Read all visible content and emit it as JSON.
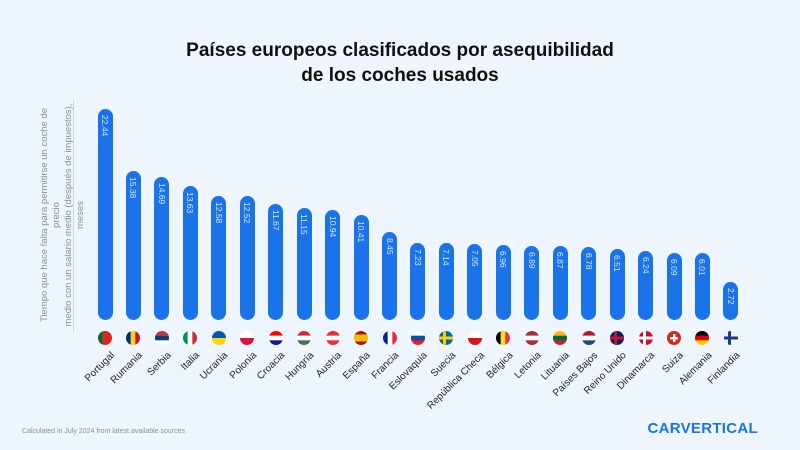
{
  "chart_data": {
    "type": "bar",
    "title_line1": "Países europeos clasificados por asequibilidad",
    "title_line2": "de los coches usados",
    "ylabel_line1": "Tiempo que hace falta para permitirse un coche de precio",
    "ylabel_line2": "medio con un salario medio (después de impuestos), meses",
    "xlabel": "",
    "categories": [
      "Portugal",
      "Rumania",
      "Serbia",
      "Italia",
      "Ucrania",
      "Polonia",
      "Croacia",
      "Hungría",
      "Austria",
      "España",
      "Francia",
      "Eslovaquia",
      "Suecia",
      "República Checa",
      "Bélgica",
      "Letonia",
      "Lituania",
      "Países Bajos",
      "Reino Unido",
      "Dinamarca",
      "Suiza",
      "Alemania",
      "Finlandia"
    ],
    "values": [
      22.44,
      15.38,
      14.69,
      13.63,
      12.58,
      12.52,
      11.67,
      11.15,
      10.94,
      10.41,
      8.45,
      7.23,
      7.14,
      7.05,
      6.96,
      6.89,
      6.87,
      6.78,
      6.51,
      6.24,
      6.09,
      6.01,
      2.72
    ],
    "value_labels": [
      "22.44",
      "15.38",
      "14.69",
      "13.63",
      "12.58",
      "12.52",
      "11.67",
      "11.15",
      "10.94",
      "10.41",
      "8.45",
      "7.23",
      "7.14",
      "7.05",
      "6.96",
      "6.89",
      "6.87",
      "6.78",
      "6.51",
      "6.24",
      "6.09",
      "6.01",
      "2.72"
    ],
    "ylim": [
      0,
      24
    ],
    "grid": false,
    "bar_color": "#1a73e8",
    "flags": [
      {
        "icon": "portugal-flag-icon",
        "dir": "v",
        "colors": [
          "#046a38",
          "#da291c",
          "#da291c"
        ]
      },
      {
        "icon": "romania-flag-icon",
        "dir": "v",
        "colors": [
          "#002b7f",
          "#fcd116",
          "#ce1126"
        ]
      },
      {
        "icon": "serbia-flag-icon",
        "dir": "h",
        "colors": [
          "#c6363c",
          "#0c4076",
          "#ffffff"
        ]
      },
      {
        "icon": "italy-flag-icon",
        "dir": "v",
        "colors": [
          "#009246",
          "#ffffff",
          "#ce2b37"
        ]
      },
      {
        "icon": "ukraine-flag-icon",
        "dir": "h",
        "colors": [
          "#0057b7",
          "#ffd700"
        ]
      },
      {
        "icon": "poland-flag-icon",
        "dir": "h",
        "colors": [
          "#ffffff",
          "#dc143c"
        ]
      },
      {
        "icon": "croatia-flag-icon",
        "dir": "h",
        "colors": [
          "#ff0000",
          "#ffffff",
          "#171796"
        ]
      },
      {
        "icon": "hungary-flag-icon",
        "dir": "h",
        "colors": [
          "#ce2939",
          "#ffffff",
          "#477050"
        ]
      },
      {
        "icon": "austria-flag-icon",
        "dir": "h",
        "colors": [
          "#ed2939",
          "#ffffff",
          "#ed2939"
        ]
      },
      {
        "icon": "spain-flag-icon",
        "dir": "h",
        "colors": [
          "#aa151b",
          "#f1bf00",
          "#f1bf00",
          "#aa151b"
        ]
      },
      {
        "icon": "france-flag-icon",
        "dir": "v",
        "colors": [
          "#002395",
          "#ffffff",
          "#ed2939"
        ]
      },
      {
        "icon": "slovakia-flag-icon",
        "dir": "h",
        "colors": [
          "#ffffff",
          "#0b4ea2",
          "#ee1c25"
        ]
      },
      {
        "icon": "sweden-flag-icon",
        "dir": "cross",
        "colors": [
          "#006aa7",
          "#fecc00"
        ]
      },
      {
        "icon": "czech-flag-icon",
        "dir": "h",
        "colors": [
          "#ffffff",
          "#d7141a"
        ]
      },
      {
        "icon": "belgium-flag-icon",
        "dir": "v",
        "colors": [
          "#000000",
          "#fdda24",
          "#ef3340"
        ]
      },
      {
        "icon": "latvia-flag-icon",
        "dir": "h",
        "colors": [
          "#9e3039",
          "#ffffff",
          "#9e3039"
        ]
      },
      {
        "icon": "lithuania-flag-icon",
        "dir": "h",
        "colors": [
          "#fdb913",
          "#006a44",
          "#c1272d"
        ]
      },
      {
        "icon": "netherlands-flag-icon",
        "dir": "h",
        "colors": [
          "#ae1c28",
          "#ffffff",
          "#21468b"
        ]
      },
      {
        "icon": "uk-flag-icon",
        "dir": "cross",
        "colors": [
          "#012169",
          "#c8102e"
        ]
      },
      {
        "icon": "denmark-flag-icon",
        "dir": "cross",
        "colors": [
          "#c8102e",
          "#ffffff"
        ]
      },
      {
        "icon": "switzerland-flag-icon",
        "dir": "plus",
        "colors": [
          "#da291c",
          "#ffffff"
        ]
      },
      {
        "icon": "germany-flag-icon",
        "dir": "h",
        "colors": [
          "#000000",
          "#dd0000",
          "#ffce00"
        ]
      },
      {
        "icon": "finland-flag-icon",
        "dir": "cross",
        "colors": [
          "#eef5fc",
          "#1a3a8a"
        ]
      }
    ]
  },
  "footnote": "Calculated in July 2024 from latest available sources",
  "logo": "CARVERTICAL"
}
